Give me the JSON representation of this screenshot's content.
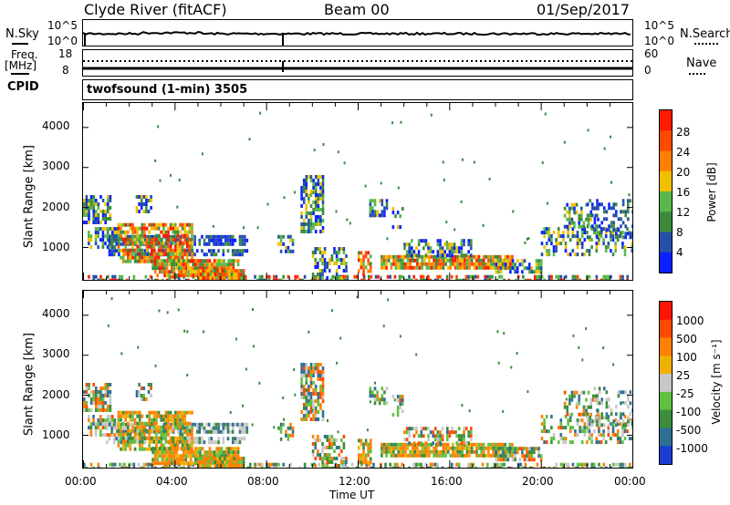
{
  "header": {
    "station": "Clyde River (fitACF)",
    "beam": "Beam 00",
    "date": "01/Sep/2017"
  },
  "noise_panel": {
    "left_label": "N.Sky",
    "left_ticks": [
      "10^5",
      "10^0"
    ],
    "right_ticks": [
      "10^5",
      "10^0"
    ],
    "right_label": "N.Search"
  },
  "freq_panel": {
    "left_label_1": "Freq.",
    "left_label_2": "[MHz]",
    "left_ticks": [
      "18",
      "8"
    ],
    "right_ticks": [
      "60",
      "0"
    ],
    "right_label": "Nave",
    "cpid_label": "CPID",
    "cpid_value": "twofsound (1-min) 3505"
  },
  "chart_data": [
    {
      "type": "heatmap",
      "name": "power",
      "ylabel": "Slant Range [km]",
      "ylim": [
        180,
        4600
      ],
      "yticks": [
        "1000",
        "2000",
        "3000",
        "4000"
      ],
      "xlim": [
        0,
        24
      ],
      "colorbar": {
        "label": "Power [dB]",
        "ticks": [
          "4",
          "8",
          "12",
          "16",
          "20",
          "24",
          "28"
        ],
        "colors": [
          "#0a22ff",
          "#2650a8",
          "#3c8b3c",
          "#58b84a",
          "#f0c000",
          "#ff7f00",
          "#ff4a00",
          "#ff1a00"
        ],
        "range": [
          0,
          32
        ]
      }
    },
    {
      "type": "heatmap",
      "name": "velocity",
      "ylabel": "Slant Range [km]",
      "ylim": [
        180,
        4600
      ],
      "yticks": [
        "1000",
        "2000",
        "3000",
        "4000"
      ],
      "xlim": [
        0,
        24
      ],
      "xticks": [
        "00:00",
        "04:00",
        "08:00",
        "12:00",
        "16:00",
        "20:00",
        "00:00"
      ],
      "xlabel": "Time UT",
      "colorbar": {
        "label": "Velocity [m s⁻¹]",
        "ticks": [
          "1000",
          "500",
          "100",
          "25",
          "-25",
          "-100",
          "-500",
          "-1000"
        ],
        "colors": [
          "#1a3fd0",
          "#2f6f96",
          "#3c8c3c",
          "#62c040",
          "#c8c8c8",
          "#f0b000",
          "#ff8000",
          "#ff4a00",
          "#ff1400"
        ]
      }
    }
  ]
}
